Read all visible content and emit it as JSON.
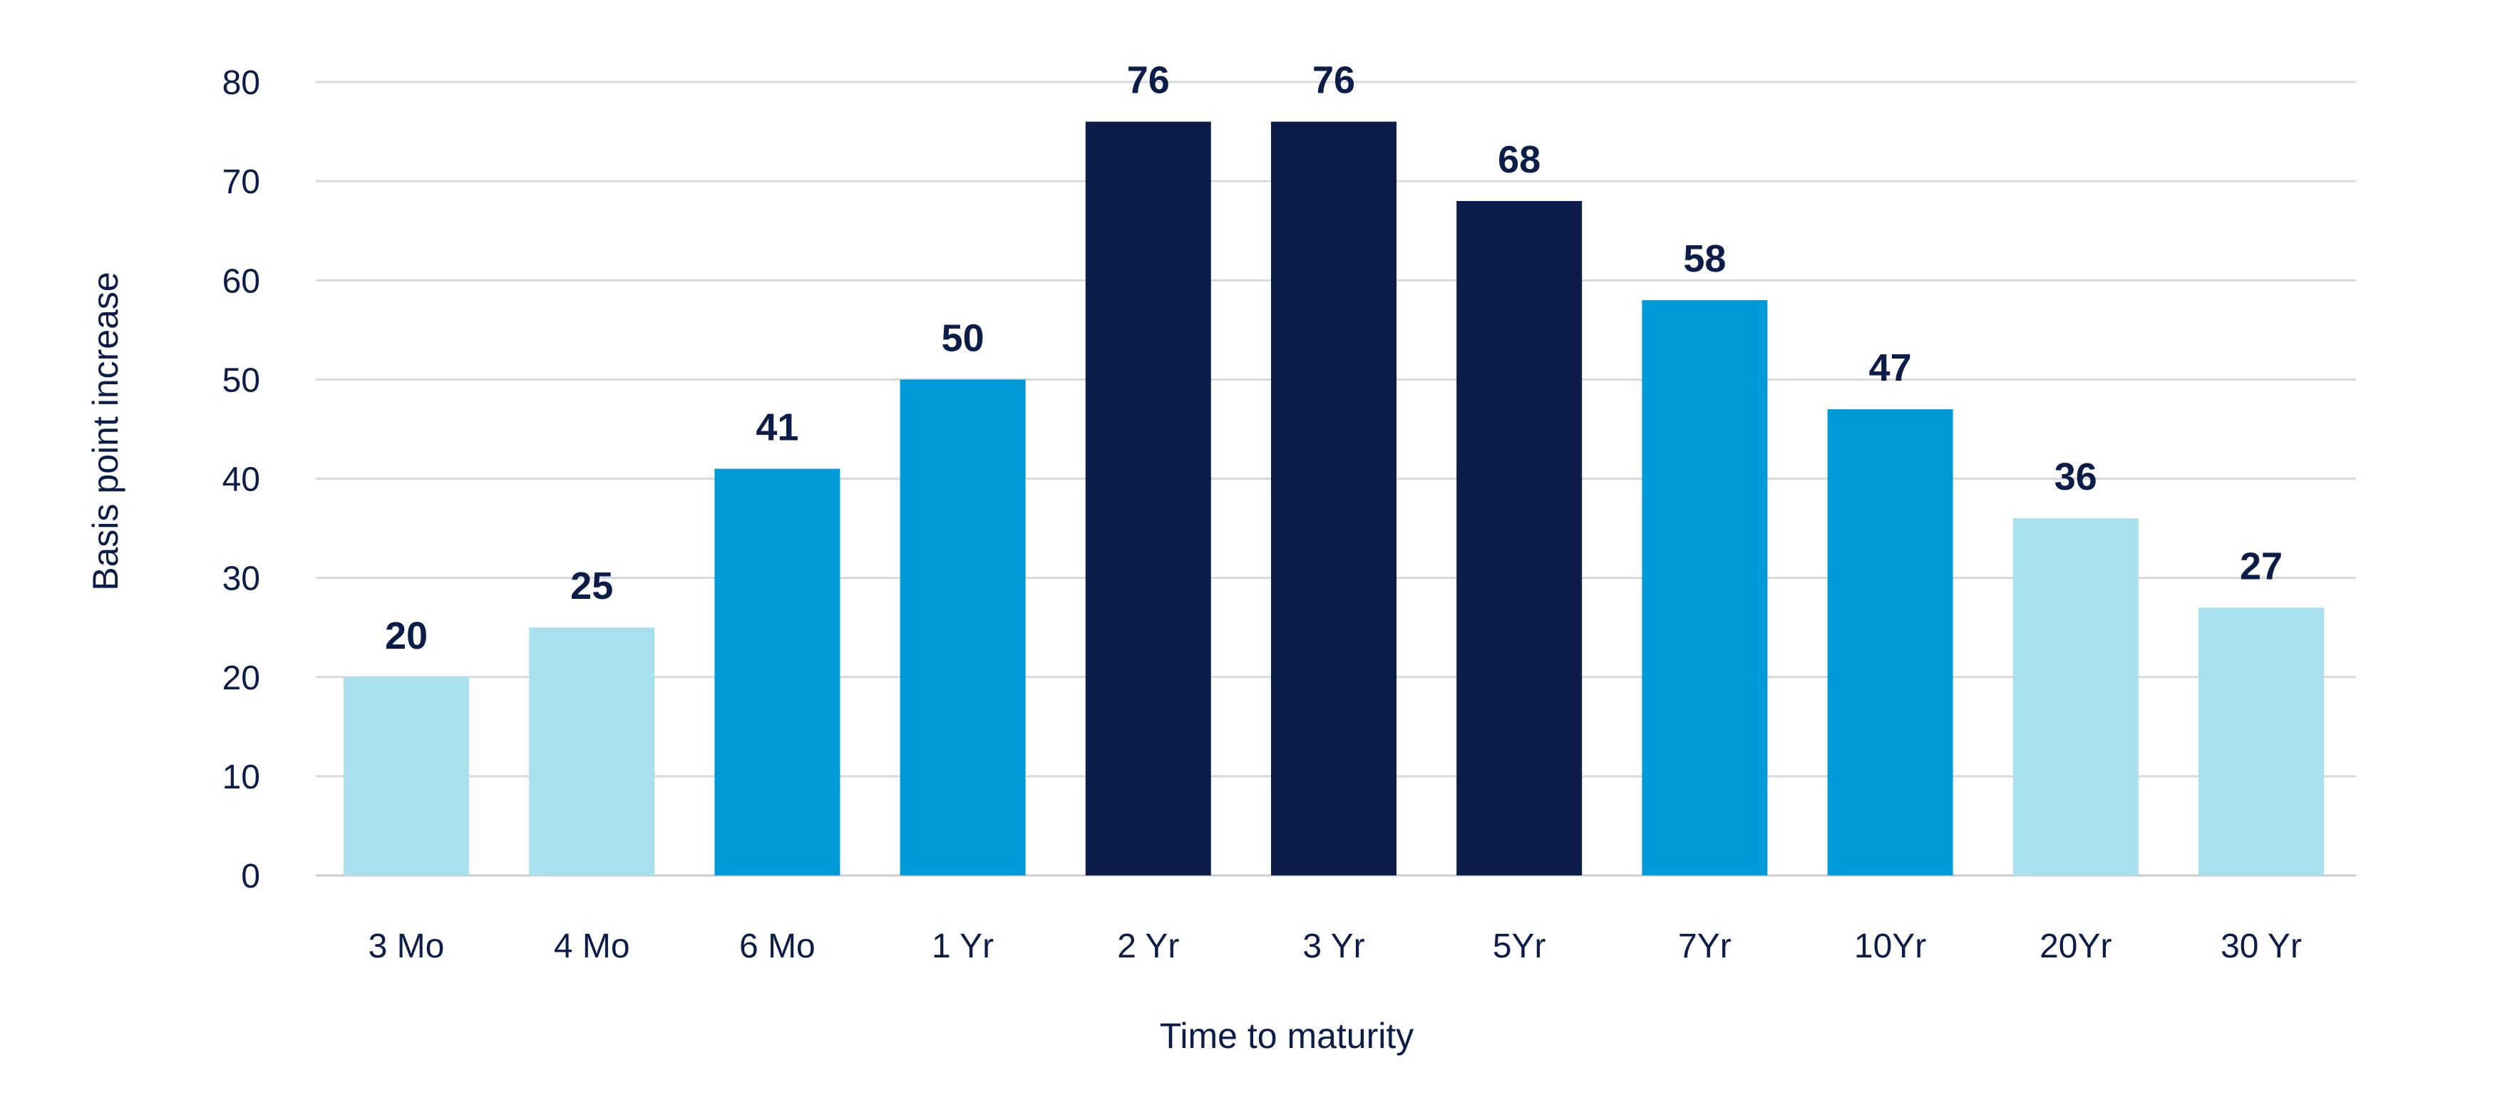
{
  "chart_data": {
    "type": "bar",
    "title": "",
    "xlabel": "Time to maturity",
    "ylabel": "Basis point increase",
    "categories": [
      "3 Mo",
      "4 Mo",
      "6 Mo",
      "1 Yr",
      "2 Yr",
      "3 Yr",
      "5Yr",
      "7Yr",
      "10Yr",
      "20Yr",
      "30 Yr"
    ],
    "values": [
      20,
      25,
      41,
      50,
      76,
      76,
      68,
      58,
      47,
      36,
      27
    ],
    "value_labels": [
      "20",
      "25",
      "41",
      "50",
      "76",
      "76",
      "68",
      "58",
      "47",
      "36",
      "27"
    ],
    "bar_colors": [
      "#a8e0ee",
      "#a8e0ee",
      "#009ad8",
      "#009ad8",
      "#0b1d48",
      "#0b1d48",
      "#0b1d48",
      "#009ad8",
      "#009ad8",
      "#a8e0ee",
      "#a8e0ee"
    ],
    "ylim": [
      0,
      80
    ],
    "yticks": [
      "0",
      "10",
      "20",
      "30",
      "40",
      "50",
      "60",
      "70",
      "80"
    ],
    "grid": true,
    "legend": "none"
  }
}
